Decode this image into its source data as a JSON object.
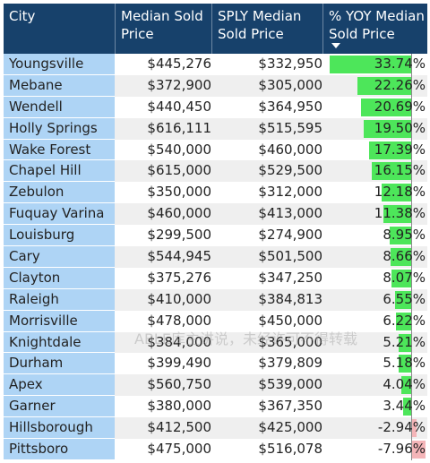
{
  "header": {
    "city": "City",
    "median_sold_price": "Median Sold\nPrice",
    "sply_median_sold_price": "SPLY Median\nSold Price",
    "yoy": "% YOY Median\nSold Price"
  },
  "colors": {
    "header_bg": "#17416b",
    "city_cell_bg": "#aed4f5",
    "positive_bar": "#4de65a",
    "negative_bar": "#f4b5b8"
  },
  "rows": [
    {
      "city": "Youngsville",
      "median": "$445,276",
      "sply": "$332,950",
      "yoy": "33.74%",
      "yoy_value": 33.74
    },
    {
      "city": "Mebane",
      "median": "$372,900",
      "sply": "$305,000",
      "yoy": "22.26%",
      "yoy_value": 22.26
    },
    {
      "city": "Wendell",
      "median": "$440,450",
      "sply": "$364,950",
      "yoy": "20.69%",
      "yoy_value": 20.69
    },
    {
      "city": "Holly Springs",
      "median": "$616,111",
      "sply": "$515,595",
      "yoy": "19.50%",
      "yoy_value": 19.5
    },
    {
      "city": "Wake Forest",
      "median": "$540,000",
      "sply": "$460,000",
      "yoy": "17.39%",
      "yoy_value": 17.39
    },
    {
      "city": "Chapel Hill",
      "median": "$615,000",
      "sply": "$529,500",
      "yoy": "16.15%",
      "yoy_value": 16.15
    },
    {
      "city": "Zebulon",
      "median": "$350,000",
      "sply": "$312,000",
      "yoy": "12.18%",
      "yoy_value": 12.18
    },
    {
      "city": "Fuquay Varina",
      "median": "$460,000",
      "sply": "$413,000",
      "yoy": "11.38%",
      "yoy_value": 11.38
    },
    {
      "city": "Louisburg",
      "median": "$299,500",
      "sply": "$274,900",
      "yoy": "8.95%",
      "yoy_value": 8.95
    },
    {
      "city": "Cary",
      "median": "$544,945",
      "sply": "$501,500",
      "yoy": "8.66%",
      "yoy_value": 8.66
    },
    {
      "city": "Clayton",
      "median": "$375,276",
      "sply": "$347,250",
      "yoy": "8.07%",
      "yoy_value": 8.07
    },
    {
      "city": "Raleigh",
      "median": "$410,000",
      "sply": "$384,813",
      "yoy": "6.55%",
      "yoy_value": 6.55
    },
    {
      "city": "Morrisville",
      "median": "$478,000",
      "sply": "$450,000",
      "yoy": "6.22%",
      "yoy_value": 6.22
    },
    {
      "city": "Knightdale",
      "median": "$384,000",
      "sply": "$365,000",
      "yoy": "5.21%",
      "yoy_value": 5.21
    },
    {
      "city": "Durham",
      "median": "$399,490",
      "sply": "$379,809",
      "yoy": "5.18%",
      "yoy_value": 5.18
    },
    {
      "city": "Apex",
      "median": "$560,750",
      "sply": "$539,000",
      "yoy": "4.04%",
      "yoy_value": 4.04
    },
    {
      "city": "Garner",
      "median": "$380,000",
      "sply": "$367,350",
      "yoy": "3.44%",
      "yoy_value": 3.44
    },
    {
      "city": "Hillsborough",
      "median": "$412,500",
      "sply": "$425,000",
      "yoy": "-2.94%",
      "yoy_value": -2.94
    },
    {
      "city": "Pittsboro",
      "median": "$475,000",
      "sply": "$516,078",
      "yoy": "-7.96%",
      "yoy_value": -7.96
    }
  ],
  "watermark": "ABLE库主讲说，未经许可不得转载"
}
